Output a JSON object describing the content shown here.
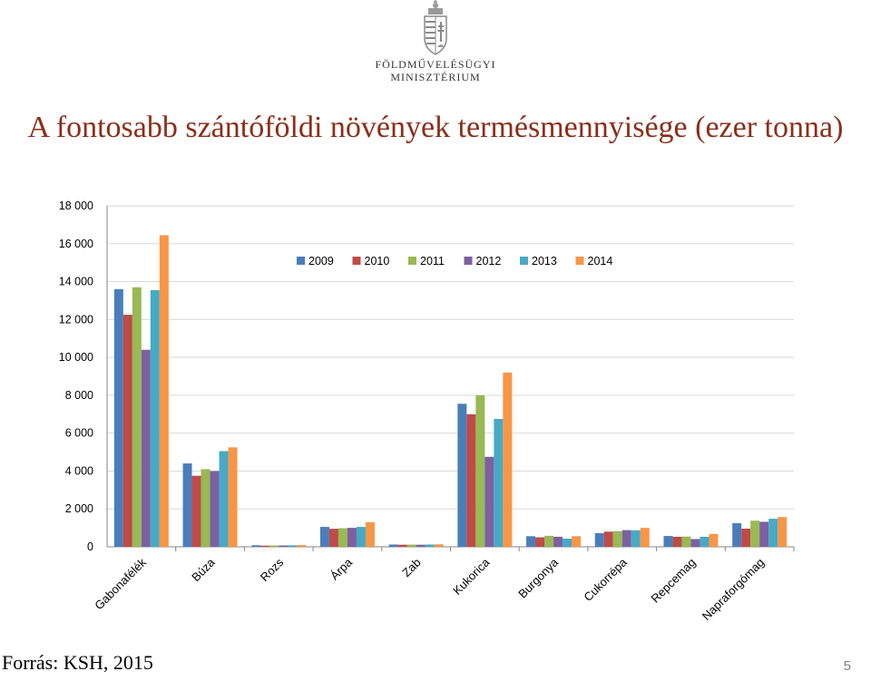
{
  "header": {
    "ministry_line1": "FÖLDMŰVELÉSÜGYI",
    "ministry_line2": "MINISZTÉRIUM",
    "title": "A fontosabb szántóföldi növények termésmennyisége (ezer tonna)"
  },
  "footer": {
    "source": "Forrás: KSH, 2015",
    "page_number": "5"
  },
  "chart_data": {
    "type": "bar",
    "title": "A fontosabb szántóföldi növények termésmennyisége (ezer tonna)",
    "xlabel": "",
    "ylabel": "",
    "ylim": [
      0,
      18000
    ],
    "yticks": [
      0,
      2000,
      4000,
      6000,
      8000,
      10000,
      12000,
      14000,
      16000,
      18000
    ],
    "ytick_labels": [
      "0",
      "2 000",
      "4 000",
      "6 000",
      "8 000",
      "10 000",
      "12 000",
      "14 000",
      "16 000",
      "18 000"
    ],
    "grid": true,
    "legend_position": "top-center",
    "categories": [
      "Gabonafélék",
      "Búza",
      "Rozs",
      "Árpa",
      "Zab",
      "Kukorica",
      "Burgonya",
      "Cukorrépa",
      "Repcemag",
      "Napraforgómag"
    ],
    "series": [
      {
        "name": "2009",
        "color": "#4a7ebb",
        "values": [
          13600,
          4400,
          80,
          1050,
          120,
          7550,
          560,
          720,
          570,
          1250
        ]
      },
      {
        "name": "2010",
        "color": "#be4b48",
        "values": [
          12250,
          3750,
          60,
          950,
          110,
          7000,
          500,
          800,
          530,
          960
        ]
      },
      {
        "name": "2011",
        "color": "#98b954",
        "values": [
          13700,
          4100,
          70,
          980,
          115,
          8000,
          580,
          830,
          540,
          1380
        ]
      },
      {
        "name": "2012",
        "color": "#7d60a0",
        "values": [
          10400,
          4000,
          70,
          1000,
          110,
          4750,
          530,
          880,
          410,
          1320
        ]
      },
      {
        "name": "2013",
        "color": "#46aac5",
        "values": [
          13550,
          5050,
          80,
          1050,
          120,
          6750,
          430,
          870,
          530,
          1480
        ]
      },
      {
        "name": "2014",
        "color": "#f79646",
        "values": [
          16450,
          5250,
          90,
          1300,
          130,
          9200,
          560,
          1000,
          680,
          1570
        ]
      }
    ]
  }
}
